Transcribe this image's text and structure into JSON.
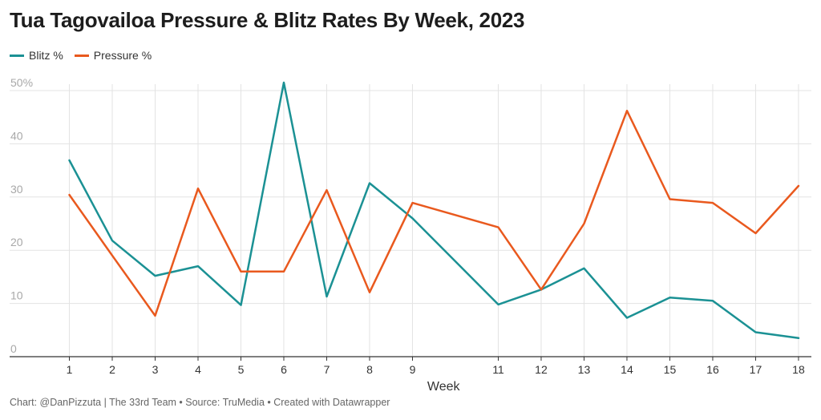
{
  "title": "Tua Tagovailoa Pressure & Blitz Rates By Week, 2023",
  "footer": "Chart: @DanPizzuta | The 33rd Team • Source: TruMedia • Created with Datawrapper",
  "chart_data": {
    "type": "line",
    "title": "Tua Tagovailoa Pressure & Blitz Rates By Week, 2023",
    "xlabel": "Week",
    "ylabel": "",
    "x": [
      1,
      2,
      3,
      4,
      5,
      6,
      7,
      8,
      9,
      11,
      12,
      13,
      14,
      15,
      16,
      17,
      18
    ],
    "x_ticks": [
      "1",
      "2",
      "3",
      "4",
      "5",
      "6",
      "7",
      "8",
      "9",
      "11",
      "12",
      "13",
      "14",
      "15",
      "16",
      "17",
      "18"
    ],
    "xlim": [
      0,
      18.3
    ],
    "ylim": [
      0,
      51
    ],
    "y_ticks": [
      {
        "value": 0,
        "label": "0"
      },
      {
        "value": 10,
        "label": "10"
      },
      {
        "value": 20,
        "label": "20"
      },
      {
        "value": 30,
        "label": "30"
      },
      {
        "value": 40,
        "label": "40"
      },
      {
        "value": 50,
        "label": "50%"
      }
    ],
    "grid": true,
    "legend_position": "top-left",
    "series": [
      {
        "name": "Blitz %",
        "color": "#1b9194",
        "values": [
          36.9,
          21.8,
          15.2,
          17.0,
          9.7,
          51.5,
          11.3,
          32.6,
          26.0,
          9.8,
          12.6,
          16.6,
          7.3,
          11.1,
          10.5,
          4.6,
          3.5
        ]
      },
      {
        "name": "Pressure %",
        "color": "#e9591e",
        "values": [
          30.4,
          19.0,
          7.7,
          31.6,
          16.0,
          16.0,
          31.3,
          12.1,
          28.9,
          24.3,
          12.6,
          25.0,
          46.2,
          29.6,
          28.9,
          23.2,
          32.1
        ]
      }
    ]
  }
}
